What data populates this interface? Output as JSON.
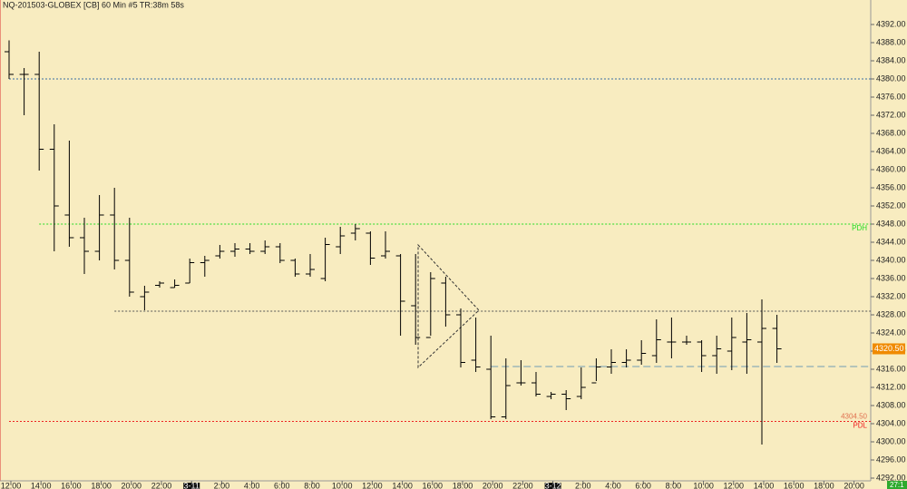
{
  "chart_data": {
    "type": "ohlc",
    "title": "NQ-201503-GLOBEX [CB]  60 Min   #5 TR:38m 58s",
    "categories": [
      "12:00",
      null,
      "14:00",
      null,
      "16:00",
      null,
      "18:00",
      null,
      "20:00",
      null,
      "22:00",
      null,
      "3-11",
      null,
      "2:00",
      null,
      "4:00",
      null,
      "6:00",
      null,
      "8:00",
      null,
      "10:00",
      null,
      "12:00",
      null,
      "14:00",
      null,
      "16:00",
      null,
      "18:00",
      null,
      "20:00",
      null,
      "22:00",
      null,
      "3-12",
      null,
      "2:00",
      null,
      "4:00",
      null,
      "6:00",
      null,
      "8:00",
      null,
      "10:00",
      null,
      "12:00",
      null,
      "14:00",
      null,
      "16:00",
      null,
      "18:00",
      null,
      "20:00"
    ],
    "open": [
      4386,
      4381,
      4381,
      4364.5,
      4350,
      4345,
      4342,
      4350,
      4340,
      4332,
      4334.5,
      4334,
      4335,
      4339.5,
      4341,
      4342,
      4342.5,
      4342,
      4343,
      4340,
      4337,
      4336,
      4343,
      4346,
      4346,
      4341,
      4341,
      4330,
      4323,
      4335,
      4328,
      4318,
      4316,
      4305.5,
      4313,
      4313,
      4310,
      4310.5,
      4310,
      4313,
      4316.5,
      4317.5,
      4318,
      4319,
      4322,
      4322,
      4322,
      4319,
      4320,
      4322,
      4322,
      4325,
      null,
      null,
      null,
      null,
      null
    ],
    "high": [
      4388.5,
      4382.4,
      4386,
      4370,
      4366.4,
      4349.4,
      4354.4,
      4356,
      4349.4,
      4334.4,
      4335.4,
      4335.8,
      4340.4,
      4341,
      4343.4,
      4343.8,
      4343.8,
      4344.4,
      4343.8,
      4340.4,
      4341.4,
      4345,
      4347.4,
      4348,
      4346.4,
      4346.4,
      4341.4,
      4341.4,
      4337.4,
      4336.4,
      4329.4,
      4327.4,
      4323.4,
      4318.4,
      4318,
      4315.4,
      4311,
      4311.4,
      4316.4,
      4318.4,
      4320.4,
      4320.4,
      4322.4,
      4327,
      4327.4,
      4323.4,
      4322.4,
      4323.4,
      4327.4,
      4328.4,
      4331.4,
      4328,
      null,
      null,
      null,
      null,
      null
    ],
    "low": [
      4380,
      4372,
      4359.8,
      4342,
      4343,
      4337,
      4340,
      4338,
      4332,
      4329,
      4334,
      4334,
      4335,
      4336.4,
      4340.4,
      4340.8,
      4341.4,
      4341.4,
      4339.4,
      4336.4,
      4336.4,
      4335.4,
      4341.4,
      4344.4,
      4339,
      4340.4,
      4323.4,
      4321.4,
      4323.4,
      4325.4,
      4316.4,
      4315.4,
      4305,
      4305,
      4312.4,
      4310,
      4309.4,
      4307,
      4309.4,
      4313.4,
      4315,
      4316.4,
      4317,
      4317.4,
      4318.4,
      4321.4,
      4315.4,
      4315,
      4315.8,
      4315,
      4299.4,
      4317.4,
      null,
      null,
      null,
      null,
      null
    ],
    "close": [
      4381,
      4381,
      4364.5,
      4352,
      4345,
      4342,
      4350,
      4340,
      4333,
      4333,
      4335,
      4334.5,
      4339.5,
      4340,
      4342,
      4342.5,
      4342,
      4343,
      4340,
      4337,
      4338,
      4343.5,
      4345.4,
      4347,
      4340.5,
      4342,
      4331,
      4323,
      4336,
      4328,
      4317.5,
      4316.5,
      4305.5,
      4312.4,
      4313,
      4310.5,
      4310.5,
      4309.5,
      4312,
      4316.5,
      4317.5,
      4318,
      4319.5,
      4322.5,
      4322,
      4322,
      4319,
      4320.5,
      4323,
      4322.5,
      4325,
      4320.5,
      null,
      null,
      null,
      null,
      null
    ],
    "ylim": [
      4291.4,
      4397.4
    ],
    "yticks": [
      {
        "value": 4292,
        "label": "4292.00"
      },
      {
        "value": 4296,
        "label": "4296.00"
      },
      {
        "value": 4300,
        "label": "4300.00"
      },
      {
        "value": 4304,
        "label": "4304.00"
      },
      {
        "value": 4308,
        "label": "4308.00"
      },
      {
        "value": 4312,
        "label": "4312.00"
      },
      {
        "value": 4316,
        "label": "4316.00"
      },
      {
        "value": 4320,
        "label": "4320.00"
      },
      {
        "value": 4324,
        "label": "4324.00"
      },
      {
        "value": 4328,
        "label": "4328.00"
      },
      {
        "value": 4332,
        "label": "4332.00"
      },
      {
        "value": 4336,
        "label": "4336.00"
      },
      {
        "value": 4340,
        "label": "4340.00"
      },
      {
        "value": 4344,
        "label": "4344.00"
      },
      {
        "value": 4348,
        "label": "4348.00"
      },
      {
        "value": 4352,
        "label": "4352.00"
      },
      {
        "value": 4356,
        "label": "4356.00"
      },
      {
        "value": 4360,
        "label": "4360.00"
      },
      {
        "value": 4364,
        "label": "4364.00"
      },
      {
        "value": 4368,
        "label": "4368.00"
      },
      {
        "value": 4372,
        "label": "4372.00"
      },
      {
        "value": 4376,
        "label": "4376.00"
      },
      {
        "value": 4380,
        "label": "4380.00"
      },
      {
        "value": 4384,
        "label": "4384.00"
      },
      {
        "value": 4388,
        "label": "4388.00"
      },
      {
        "value": 4392,
        "label": "4392.00"
      }
    ],
    "color": "#000000",
    "lines": [
      {
        "value": 4380,
        "from": 0,
        "color": "#3a6ea5",
        "dash": "2 2"
      },
      {
        "value": 4348,
        "from": 2,
        "color": "#22dd22",
        "dash": "2 2",
        "label": "PDH"
      },
      {
        "value": 4328.8,
        "from": 7,
        "color": "#555555",
        "dash": "2 2"
      },
      {
        "value": 4316.6,
        "from": 32,
        "color": "#6f9bb5",
        "dash": "8 4"
      },
      {
        "value": 4304.5,
        "from": 0,
        "color": "#ee2222",
        "dash": "2 2",
        "label": "PDL",
        "value_label": "4304.50"
      }
    ],
    "last_price": {
      "value": 4320.5,
      "label": "4320.50"
    },
    "corner_label": "27:1"
  }
}
